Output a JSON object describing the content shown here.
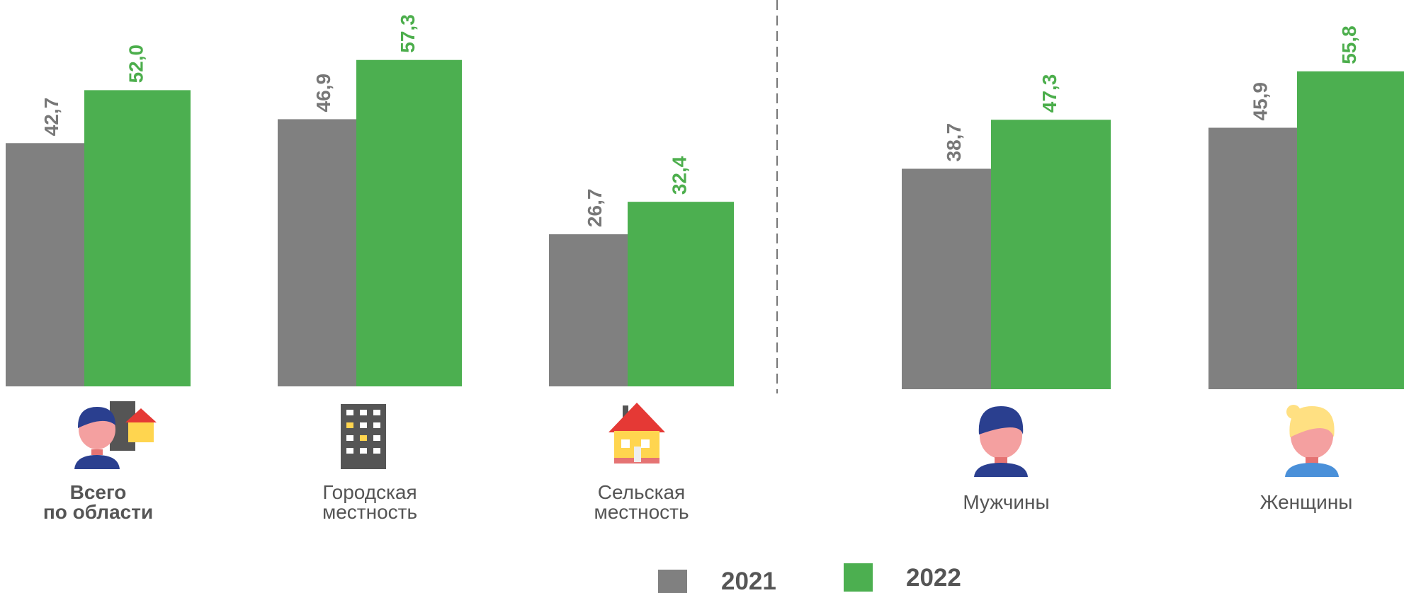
{
  "chart_data": {
    "type": "bar",
    "categories": [
      "Всего\nпо области",
      "Городская\nместность",
      "Сельская\nместность",
      "Мужчины",
      "Женщины"
    ],
    "series": [
      {
        "name": "2021",
        "color": "#808080",
        "values": [
          42.7,
          46.9,
          26.7,
          38.7,
          45.9
        ],
        "value_labels": [
          "42,7",
          "46,9",
          "26,7",
          "38,7",
          "45,9"
        ]
      },
      {
        "name": "2022",
        "color": "#4caf50",
        "values": [
          52.0,
          57.3,
          32.4,
          47.3,
          55.8
        ],
        "value_labels": [
          "52,0",
          "57,3",
          "32,4",
          "47,3",
          "55,8"
        ]
      }
    ]
  }
}
